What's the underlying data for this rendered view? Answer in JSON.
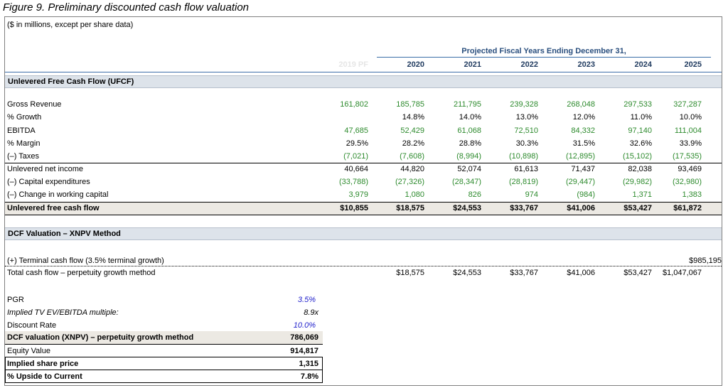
{
  "title": "Figure 9. Preliminary discounted cash flow valuation",
  "note": "($ in millions, except per share data)",
  "projected_header": "Projected Fiscal Years Ending December 31,",
  "years": [
    "2019 PF",
    "2020",
    "2021",
    "2022",
    "2023",
    "2024",
    "2025"
  ],
  "ufcf_section": "Unlevered Free Cash Flow (UFCF)",
  "rows": {
    "gross_revenue": {
      "label": "Gross Revenue",
      "values": [
        "161,802",
        "185,785",
        "211,795",
        "239,328",
        "268,048",
        "297,533",
        "327,287"
      ]
    },
    "growth": {
      "label": "% Growth",
      "values": [
        "",
        "14.8%",
        "14.0%",
        "13.0%",
        "12.0%",
        "11.0%",
        "10.0%"
      ]
    },
    "ebitda": {
      "label": "EBITDA",
      "values": [
        "47,685",
        "52,429",
        "61,068",
        "72,510",
        "84,332",
        "97,140",
        "111,004"
      ]
    },
    "margin": {
      "label": "% Margin",
      "values": [
        "29.5%",
        "28.2%",
        "28.8%",
        "30.3%",
        "31.5%",
        "32.6%",
        "33.9%"
      ]
    },
    "taxes": {
      "label": "(–) Taxes",
      "values": [
        "(7,021)",
        "(7,608)",
        "(8,994)",
        "(10,898)",
        "(12,895)",
        "(15,102)",
        "(17,535)"
      ]
    },
    "net_income": {
      "label": "Unlevered net income",
      "values": [
        "40,664",
        "44,820",
        "52,074",
        "61,613",
        "71,437",
        "82,038",
        "93,469"
      ]
    },
    "capex": {
      "label": "(–) Capital expenditures",
      "values": [
        "(33,788)",
        "(27,326)",
        "(28,347)",
        "(28,819)",
        "(29,447)",
        "(29,982)",
        "(32,980)"
      ]
    },
    "wc": {
      "label": "(–) Change in working capital",
      "values": [
        "3,979",
        "1,080",
        "826",
        "974",
        "(984)",
        "1,371",
        "1,383"
      ]
    },
    "ufcf": {
      "label": "Unlevered free cash flow",
      "values": [
        "$10,855",
        "$18,575",
        "$24,553",
        "$33,767",
        "$41,006",
        "$53,427",
        "$61,872"
      ]
    }
  },
  "dcf_section": "DCF Valuation – XNPV Method",
  "terminal": {
    "label": "(+) Terminal cash flow (3.5% terminal growth)",
    "value": "$985,195"
  },
  "total": {
    "label": "Total cash flow – perpetuity growth method",
    "values": [
      "$18,575",
      "$24,553",
      "$33,767",
      "$41,006",
      "$53,427",
      "$1,047,067"
    ]
  },
  "summary": {
    "pgr": {
      "label": "PGR",
      "value": "3.5%"
    },
    "tv_multiple": {
      "label": "Implied TV EV/EBITDA multiple:",
      "value": "8.9x"
    },
    "discount_rate": {
      "label": "Discount Rate",
      "value": "10.0%"
    },
    "dcf_value": {
      "label": "DCF valuation (XNPV) – perpetuity growth method",
      "value": "786,069"
    },
    "equity_value": {
      "label": "Equity Value",
      "value": "914,817"
    },
    "share_price": {
      "label": "Implied share price",
      "value": "1,315"
    },
    "upside": {
      "label": "% Upside to Current",
      "value": "7.8%"
    }
  },
  "colors": {
    "input_green": "#2e8b2e",
    "input_blue": "#2222cc",
    "header_band": "#dde3ea",
    "header_text": "#1f3a5f"
  }
}
